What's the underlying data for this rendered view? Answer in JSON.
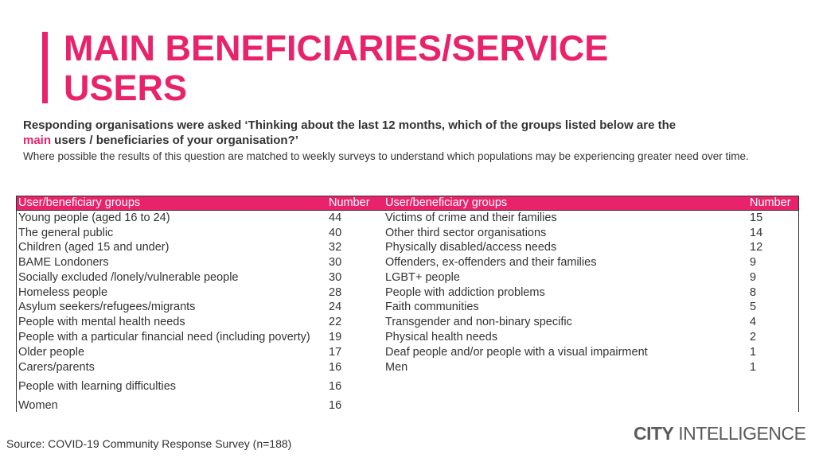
{
  "title_line1": "MAIN BENEFICIARIES/SERVICE",
  "title_line2": "USERS",
  "question": {
    "part1": "Responding organisations were asked ‘Thinking about the last 12 months, which of the groups listed below are the",
    "highlight": "main",
    "part2": " users / beneficiaries of your organisation?’"
  },
  "note": "Where possible the results of this question are matched to weekly surveys to understand which populations may be experiencing greater need over time.",
  "table": {
    "header": {
      "group_left": "User/beneficiary groups",
      "number_left": "Number",
      "group_right": "User/beneficiary groups",
      "number_right": "Number"
    },
    "left": [
      {
        "group": "Young people (aged 16 to 24)",
        "number": "44"
      },
      {
        "group": "The general public",
        "number": "40"
      },
      {
        "group": "Children (aged 15 and under)",
        "number": "32"
      },
      {
        "group": "BAME Londoners",
        "number": "30"
      },
      {
        "group": "Socially excluded /lonely/vulnerable people",
        "number": "30"
      },
      {
        "group": "Homeless people",
        "number": "28"
      },
      {
        "group": "Asylum seekers/refugees/migrants",
        "number": "24"
      },
      {
        "group": "People with mental health needs",
        "number": "22"
      },
      {
        "group": "People with a particular financial need (including poverty)",
        "number": "19"
      },
      {
        "group": "Older people",
        "number": "17"
      },
      {
        "group": "Carers/parents",
        "number": "16"
      },
      {
        "group": "People with learning difficulties",
        "number": "16"
      },
      {
        "group": "Women",
        "number": "16"
      }
    ],
    "right": [
      {
        "group": "Victims of crime and their families",
        "number": "15"
      },
      {
        "group": "Other third sector organisations",
        "number": "14"
      },
      {
        "group": "Physically disabled/access needs",
        "number": "12"
      },
      {
        "group": "Offenders, ex-offenders and their families",
        "number": "9"
      },
      {
        "group": "LGBT+ people",
        "number": "9"
      },
      {
        "group": "People with addiction problems",
        "number": "8"
      },
      {
        "group": "Faith communities",
        "number": "5"
      },
      {
        "group": "Transgender and non-binary specific",
        "number": "4"
      },
      {
        "group": "Physical health needs",
        "number": "2"
      },
      {
        "group": "Deaf people and/or people with a visual impairment",
        "number": "1"
      },
      {
        "group": "Men",
        "number": "1"
      }
    ]
  },
  "source": "Source: COVID-19 Community Response Survey (n=188)",
  "logo": {
    "bold": "CITY",
    "light": " INTELLIGENCE"
  },
  "colors": {
    "accent": "#e8236b",
    "text": "#333333"
  }
}
